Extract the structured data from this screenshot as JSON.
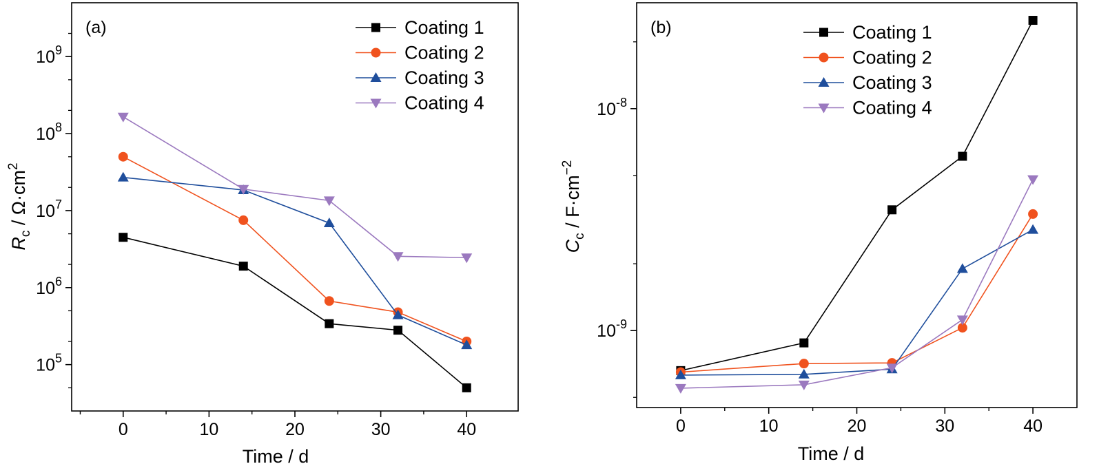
{
  "chart_data": [
    {
      "type": "line",
      "panel_label": "(a)",
      "xlabel": "Time / d",
      "ylabel_symbol": "R",
      "ylabel_subscript": "c",
      "ylabel_unit": " / Ω·cm",
      "ylabel_unit_sup": "2",
      "xlim": [
        -6,
        46
      ],
      "ylim": [
        25000,
        5000000000
      ],
      "yscale": "log",
      "x_ticks": [
        0,
        10,
        20,
        30,
        40
      ],
      "y_ticks": [
        {
          "value": 100000,
          "base": "10",
          "exp": "5"
        },
        {
          "value": 1000000,
          "base": "10",
          "exp": "6"
        },
        {
          "value": 10000000,
          "base": "10",
          "exp": "7"
        },
        {
          "value": 100000000,
          "base": "10",
          "exp": "8"
        },
        {
          "value": 1000000000,
          "base": "10",
          "exp": "9"
        }
      ],
      "legend_position": "top-right",
      "x": [
        0,
        14,
        24,
        32,
        40
      ],
      "series": [
        {
          "name": "Coating 1",
          "color": "#000000",
          "marker": "square",
          "values": [
            4500000,
            1900000,
            340000,
            280000,
            50000
          ]
        },
        {
          "name": "Coating 2",
          "color": "#f0521e",
          "marker": "circle",
          "values": [
            50000000,
            7500000,
            670000,
            480000,
            200000
          ]
        },
        {
          "name": "Coating 3",
          "color": "#1f4e9c",
          "marker": "triangle-up",
          "values": [
            27000000,
            18500000,
            6900000,
            440000,
            180000
          ]
        },
        {
          "name": "Coating 4",
          "color": "#9b79bf",
          "marker": "triangle-down",
          "values": [
            165000000,
            19000000,
            13500000,
            2550000,
            2450000
          ]
        }
      ]
    },
    {
      "type": "line",
      "panel_label": "(b)",
      "xlabel": "Time / d",
      "ylabel_symbol": "C",
      "ylabel_subscript": "c",
      "ylabel_unit": " / F·cm",
      "ylabel_unit_sup": "−2",
      "xlim": [
        -5,
        45
      ],
      "ylim": [
        4.5e-10,
        3e-08
      ],
      "yscale": "log",
      "x_ticks": [
        0,
        10,
        20,
        30,
        40
      ],
      "y_ticks": [
        {
          "value": 1e-09,
          "base": "10",
          "exp": "-9"
        },
        {
          "value": 1e-08,
          "base": "10",
          "exp": "-8"
        }
      ],
      "legend_position": "top-center",
      "x": [
        0,
        14,
        24,
        32,
        40
      ],
      "series": [
        {
          "name": "Coating 1",
          "color": "#000000",
          "marker": "square",
          "values": [
            6.6e-10,
            8.8e-10,
            3.5e-09,
            6.1e-09,
            2.5e-08
          ]
        },
        {
          "name": "Coating 2",
          "color": "#f0521e",
          "marker": "circle",
          "values": [
            6.5e-10,
            7.1e-10,
            7.15e-10,
            1.03e-09,
            3.35e-09
          ]
        },
        {
          "name": "Coating 3",
          "color": "#1f4e9c",
          "marker": "triangle-up",
          "values": [
            6.3e-10,
            6.35e-10,
            6.7e-10,
            1.9e-09,
            2.85e-09
          ]
        },
        {
          "name": "Coating 4",
          "color": "#9b79bf",
          "marker": "triangle-down",
          "values": [
            5.5e-10,
            5.7e-10,
            6.8e-10,
            1.12e-09,
            4.8e-09
          ]
        }
      ]
    }
  ]
}
